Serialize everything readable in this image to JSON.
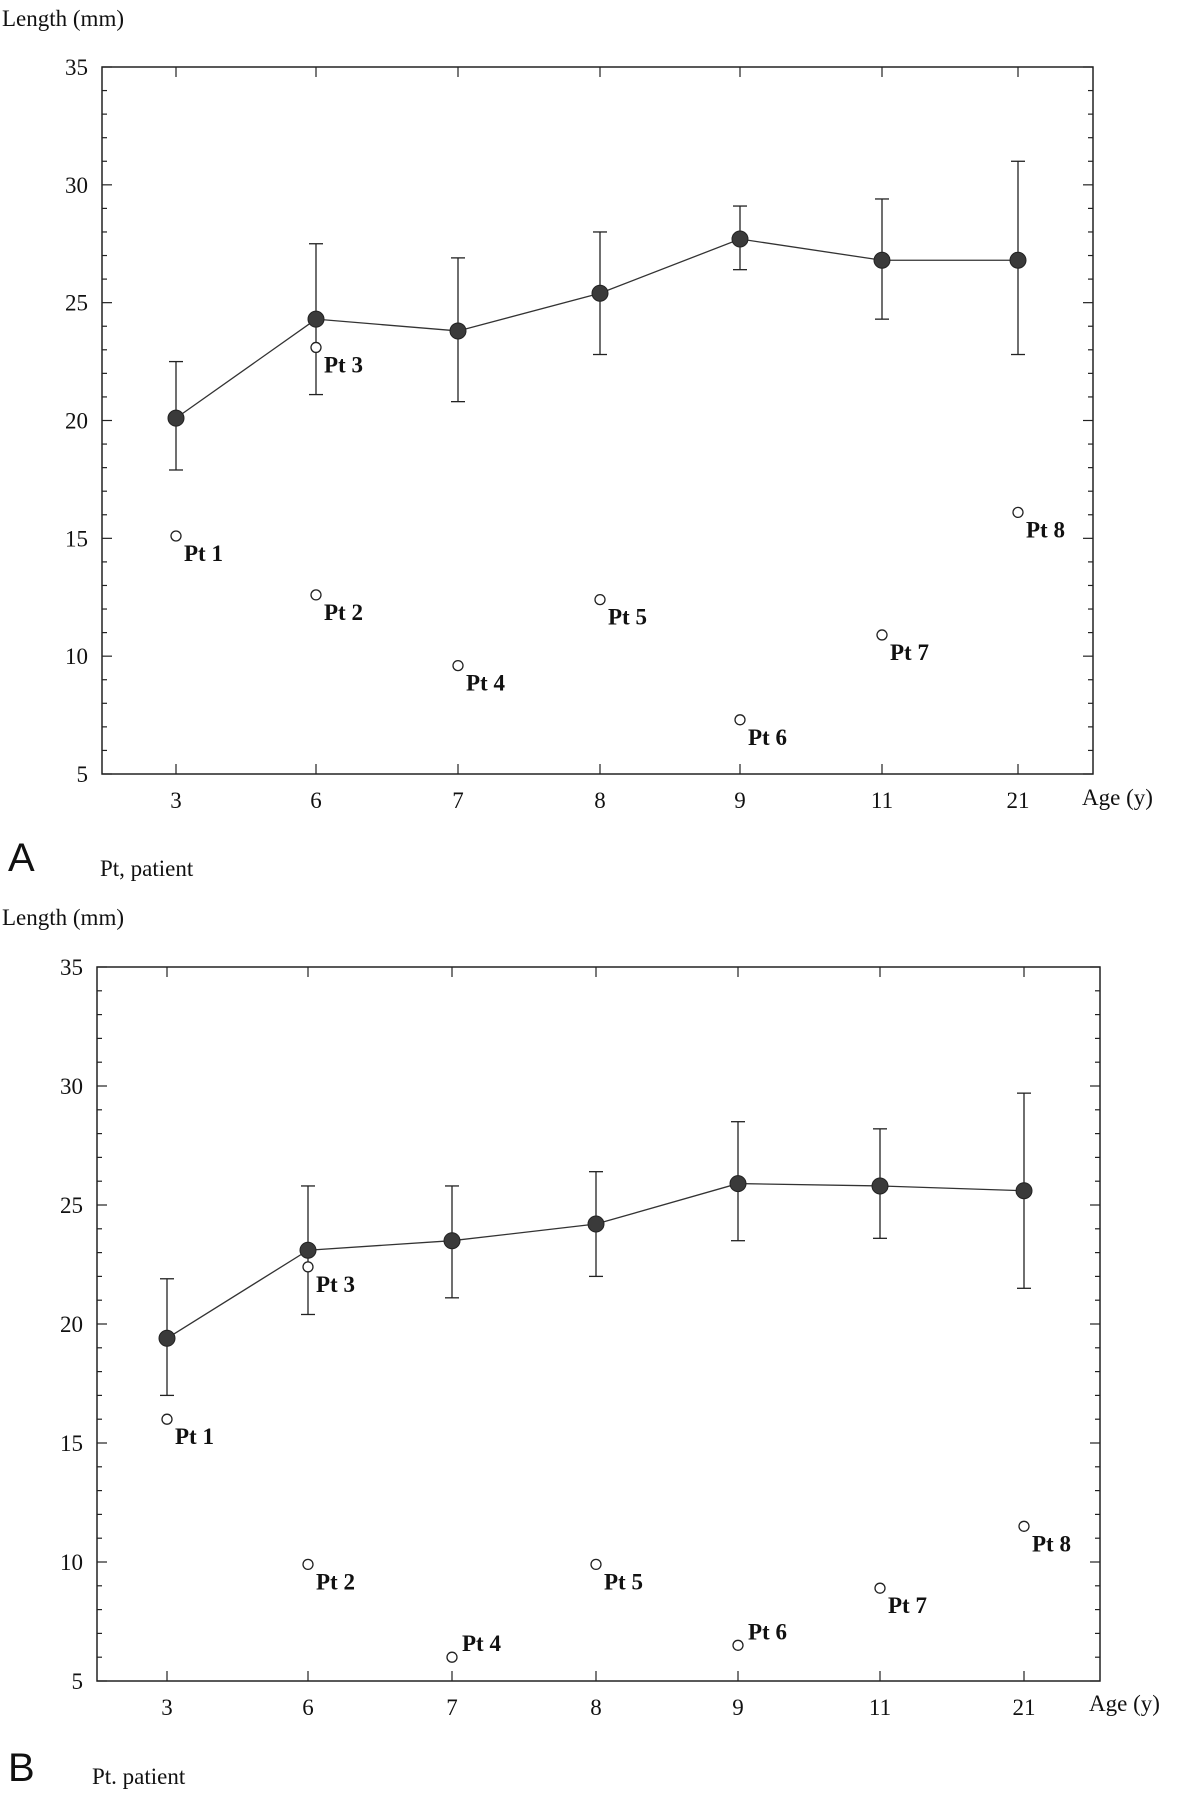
{
  "chart_data": [
    {
      "type": "scatter",
      "panel_label": "A",
      "footnote": "Pt, patient",
      "ylabel": "Length (mm)",
      "xlabel": "Age (y)",
      "ylim": [
        5,
        35
      ],
      "yticks": [
        5,
        10,
        15,
        20,
        25,
        30,
        35
      ],
      "categories": [
        "3",
        "6",
        "7",
        "8",
        "9",
        "11",
        "21"
      ],
      "series": [
        {
          "kind": "mean_with_error_bars",
          "values": [
            20.1,
            24.3,
            23.8,
            25.4,
            27.7,
            26.8,
            26.8
          ],
          "upper": [
            22.5,
            27.5,
            26.9,
            28.0,
            29.1,
            29.4,
            31.0
          ],
          "lower": [
            17.9,
            21.1,
            20.8,
            22.8,
            26.4,
            24.3,
            22.8
          ]
        },
        {
          "kind": "patients",
          "points": [
            {
              "label": "Pt 1",
              "category": "3",
              "y": 15.1,
              "label_side": "right"
            },
            {
              "label": "Pt 3",
              "category": "6",
              "y": 23.1,
              "label_side": "right"
            },
            {
              "label": "Pt 2",
              "category": "6",
              "y": 12.6,
              "label_side": "right"
            },
            {
              "label": "Pt 4",
              "category": "7",
              "y": 9.6,
              "label_side": "right"
            },
            {
              "label": "Pt 5",
              "category": "8",
              "y": 12.4,
              "label_side": "right"
            },
            {
              "label": "Pt 6",
              "category": "9",
              "y": 7.3,
              "label_side": "right"
            },
            {
              "label": "Pt 7",
              "category": "11",
              "y": 10.9,
              "label_side": "right"
            },
            {
              "label": "Pt 8",
              "category": "21",
              "y": 16.1,
              "label_side": "right"
            }
          ]
        }
      ]
    },
    {
      "type": "scatter",
      "panel_label": "B",
      "footnote": "Pt. patient",
      "ylabel": "Length (mm)",
      "xlabel": "Age (y)",
      "ylim": [
        5,
        35
      ],
      "yticks": [
        5,
        10,
        15,
        20,
        25,
        30,
        35
      ],
      "categories": [
        "3",
        "6",
        "7",
        "8",
        "9",
        "11",
        "21"
      ],
      "series": [
        {
          "kind": "mean_with_error_bars",
          "values": [
            19.4,
            23.1,
            23.5,
            24.2,
            25.9,
            25.8,
            25.6
          ],
          "upper": [
            21.9,
            25.8,
            25.8,
            26.4,
            28.5,
            28.2,
            29.7
          ],
          "lower": [
            17.0,
            20.4,
            21.1,
            22.0,
            23.5,
            23.6,
            21.5
          ]
        },
        {
          "kind": "patients",
          "points": [
            {
              "label": "Pt 1",
              "category": "3",
              "y": 16.0,
              "label_side": "right"
            },
            {
              "label": "Pt 3",
              "category": "6",
              "y": 22.4,
              "label_side": "right"
            },
            {
              "label": "Pt 2",
              "category": "6",
              "y": 9.9,
              "label_side": "right"
            },
            {
              "label": "Pt 4",
              "category": "7",
              "y": 6.0,
              "label_side": "above-right"
            },
            {
              "label": "Pt 5",
              "category": "8",
              "y": 9.9,
              "label_side": "right"
            },
            {
              "label": "Pt 6",
              "category": "9",
              "y": 6.5,
              "label_side": "above-right"
            },
            {
              "label": "Pt 7",
              "category": "11",
              "y": 8.9,
              "label_side": "right"
            },
            {
              "label": "Pt 8",
              "category": "21",
              "y": 11.5,
              "label_side": "right"
            }
          ]
        }
      ]
    }
  ]
}
